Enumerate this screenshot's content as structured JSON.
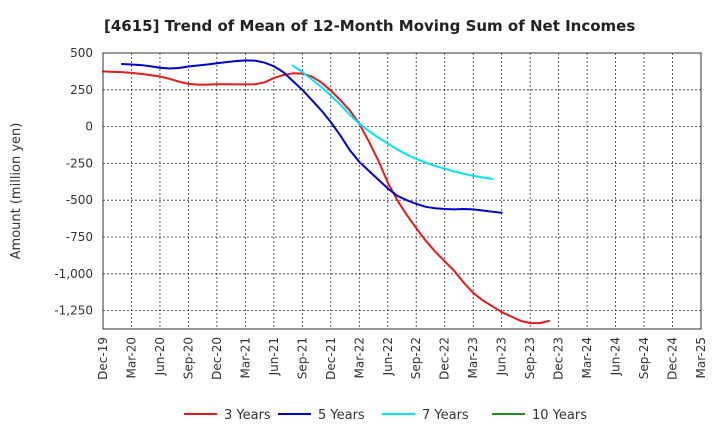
{
  "chart_data": {
    "type": "line",
    "title": "[4615]  Trend of Mean of 12-Month Moving Sum of Net Incomes",
    "xlabel": "",
    "ylabel": "Amount (million yen)",
    "ylim": [
      -1375,
      500
    ],
    "yticks": [
      500,
      250,
      0,
      -250,
      -500,
      -750,
      -1000,
      -1250
    ],
    "ytick_labels": [
      "500",
      "250",
      "0",
      "-250",
      "-500",
      "-750",
      "-1,000",
      "-1,250"
    ],
    "x_labels": [
      "Dec-19",
      "Mar-20",
      "Jun-20",
      "Sep-20",
      "Dec-20",
      "Mar-21",
      "Jun-21",
      "Sep-21",
      "Dec-21",
      "Mar-22",
      "Jun-22",
      "Sep-22",
      "Dec-22",
      "Mar-23",
      "Jun-23",
      "Sep-23",
      "Dec-23",
      "Mar-24",
      "Jun-24",
      "Sep-24",
      "Dec-24",
      "Mar-25"
    ],
    "grid": true,
    "legend_position": "bottom",
    "series": [
      {
        "name": "3 Years",
        "color": "#e31a1c",
        "values": [
          375,
          372,
          370,
          365,
          358,
          350,
          340,
          325,
          305,
          290,
          285,
          285,
          288,
          288,
          287,
          287,
          288,
          300,
          330,
          350,
          362,
          360,
          340,
          300,
          245,
          180,
          110,
          20,
          -100,
          -230,
          -380,
          -500,
          -600,
          -690,
          -775,
          -850,
          -915,
          -980,
          -1060,
          -1130,
          -1180,
          -1220,
          -1260,
          -1290,
          -1320,
          -1335,
          -1335,
          -1320
        ]
      },
      {
        "name": "5 Years",
        "color": "#0000cc",
        "start_index": 2,
        "values": [
          425,
          422,
          418,
          410,
          400,
          395,
          398,
          408,
          415,
          422,
          430,
          438,
          445,
          450,
          448,
          435,
          410,
          370,
          310,
          250,
          180,
          110,
          30,
          -60,
          -160,
          -240,
          -300,
          -360,
          -420,
          -470,
          -500,
          -525,
          -545,
          -555,
          -560,
          -562,
          -560,
          -562,
          -570,
          -578,
          -585
        ]
      },
      {
        "name": "7 Years",
        "color": "#00e5ee",
        "start_index": 20,
        "values": [
          415,
          370,
          320,
          270,
          210,
          150,
          80,
          20,
          -30,
          -75,
          -115,
          -155,
          -190,
          -220,
          -245,
          -268,
          -285,
          -305,
          -320,
          -335,
          -345,
          -355
        ]
      },
      {
        "name": "10 Years",
        "color": "#228b22",
        "values": []
      }
    ]
  }
}
